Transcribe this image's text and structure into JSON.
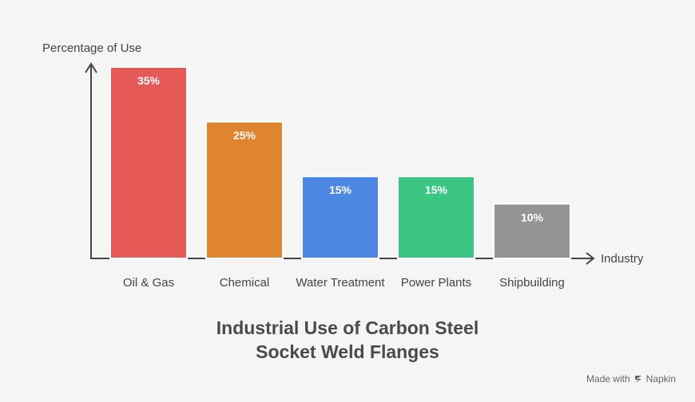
{
  "chart_data": {
    "type": "bar",
    "title_lines": [
      "Industrial Use of Carbon Steel",
      "Socket Weld Flanges"
    ],
    "xlabel": "Industry",
    "ylabel": "Percentage of Use",
    "categories": [
      "Oil & Gas",
      "Chemical",
      "Water Treatment",
      "Power Plants",
      "Shipbuilding"
    ],
    "values": [
      35,
      25,
      15,
      15,
      10
    ],
    "data_labels": [
      "35%",
      "25%",
      "15%",
      "15%",
      "10%"
    ],
    "colors": [
      "#e55a56",
      "#df842f",
      "#4d87e4",
      "#3dc683",
      "#959595"
    ],
    "ylim": [
      0,
      35
    ],
    "grid": false,
    "legend": "none"
  },
  "credit": {
    "prefix": "Made with",
    "brand": "Napkin",
    "icon": "napkin-logo-icon"
  }
}
